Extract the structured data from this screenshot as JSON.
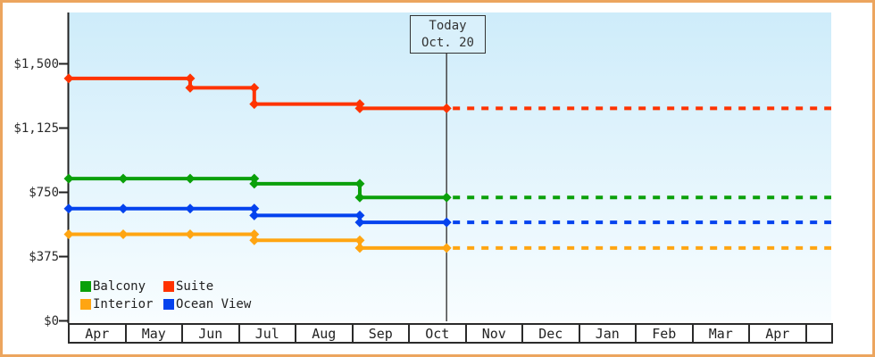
{
  "frame": {
    "border_color": "#ECA55E",
    "page_background": "#FFFFFF"
  },
  "chart_data": {
    "type": "line",
    "subtype": "stepped price history with dashed projection after today",
    "title": "",
    "x_axis": {
      "tick_labels": [
        "Apr",
        "May",
        "Jun",
        "Jul",
        "Aug",
        "Sep",
        "Oct",
        "Nov",
        "Dec",
        "Jan",
        "Feb",
        "Mar",
        "Apr"
      ],
      "style": "month cells drawn as a bordered table below the plot"
    },
    "y_axis": {
      "tick_labels": [
        "$1,500",
        "$1,125",
        "$750",
        "$375",
        "$0"
      ],
      "tick_values": [
        1500,
        1125,
        750,
        375,
        0
      ],
      "ylim_visible": [
        0,
        1800
      ],
      "grid": false
    },
    "plot_bg": {
      "top": "#CEECFA",
      "bottom": "#F8FDFF"
    },
    "axis_color": "#222222",
    "today_marker": {
      "line1": "Today",
      "line2": "Oct. 20",
      "month_pos": 6.66,
      "line_color": "#444444",
      "box_fill": "#D9F0FB"
    },
    "series": [
      {
        "name": "Suite",
        "color": "#FF3300",
        "points_month_value": [
          [
            0,
            1415
          ],
          [
            2.14,
            1360
          ],
          [
            3.27,
            1265
          ],
          [
            5.13,
            1240
          ],
          [
            6.66,
            1240
          ]
        ]
      },
      {
        "name": "Balcony",
        "color": "#0AA00A",
        "points_month_value": [
          [
            0,
            830
          ],
          [
            0.96,
            830
          ],
          [
            2.14,
            830
          ],
          [
            3.27,
            800
          ],
          [
            5.13,
            720
          ],
          [
            6.66,
            720
          ]
        ]
      },
      {
        "name": "Ocean View",
        "color": "#0442EE",
        "points_month_value": [
          [
            0,
            655
          ],
          [
            0.96,
            655
          ],
          [
            2.14,
            655
          ],
          [
            3.27,
            615
          ],
          [
            5.13,
            575
          ],
          [
            6.66,
            575
          ]
        ]
      },
      {
        "name": "Interior",
        "color": "#FFA512",
        "points_month_value": [
          [
            0,
            505
          ],
          [
            0.96,
            505
          ],
          [
            2.14,
            505
          ],
          [
            3.27,
            470
          ],
          [
            5.13,
            425
          ],
          [
            6.66,
            425
          ]
        ]
      }
    ],
    "projection": {
      "style": "dashed",
      "from_month_pos": 6.66,
      "to_month_pos": 13.45,
      "note": "each series continues flat at its last value"
    },
    "legend": {
      "position": "bottom-left inside plot",
      "rows": [
        [
          {
            "label": "Balcony",
            "color": "#0AA00A"
          },
          {
            "label": "Suite",
            "color": "#FF3300"
          }
        ],
        [
          {
            "label": "Interior",
            "color": "#FFA512"
          },
          {
            "label": "Ocean View",
            "color": "#0442EE"
          }
        ]
      ]
    }
  }
}
